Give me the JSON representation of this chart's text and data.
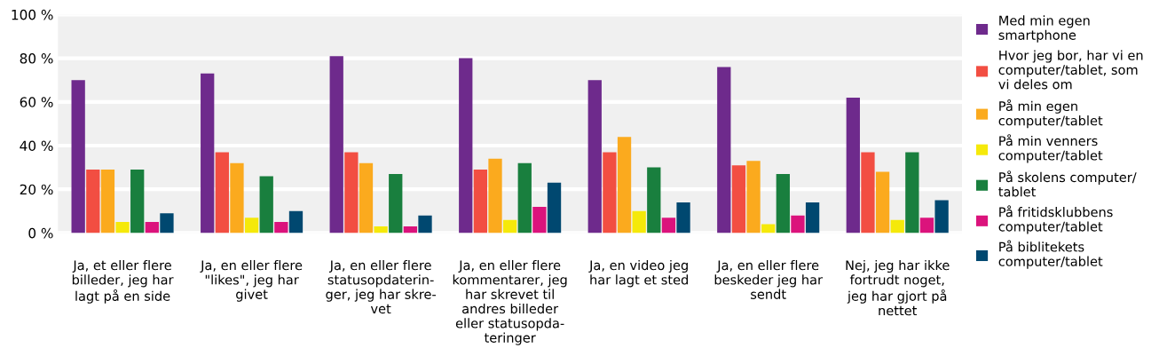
{
  "chart_data": {
    "type": "bar",
    "categories": [
      "Ja, et eller flere\nbilleder, jeg har\nlagt på en side",
      "Ja, en eller flere\n\"likes\", jeg har\ngivet",
      "Ja, en eller flere\nstatusopdaterin-\nger, jeg har skre-\nvet",
      "Ja, en eller flere\nkommentarer, jeg\nhar skrevet til\nandres billeder\neller statusopda-\nteringer",
      "Ja, en video jeg\nhar lagt et sted",
      "Ja, en eller flere\nbeskeder jeg har\nsendt",
      "Nej, jeg har ikke\nfortrudt noget,\njeg har gjort på\nnettet"
    ],
    "series": [
      {
        "name": "Med min egen\nsmartphone",
        "color": "#6e2a8c",
        "values": [
          70,
          73,
          81,
          80,
          70,
          76,
          62
        ]
      },
      {
        "name": "Hvor jeg bor, har vi en\ncomputer/tablet, som\nvi deles om",
        "color": "#f24e42",
        "values": [
          29,
          37,
          37,
          29,
          37,
          31,
          37
        ]
      },
      {
        "name": "På min egen\ncomputer/tablet",
        "color": "#fbaa1e",
        "values": [
          29,
          32,
          32,
          34,
          44,
          33,
          28
        ]
      },
      {
        "name": "På min venners\ncomputer/tablet",
        "color": "#f5e90a",
        "values": [
          5,
          7,
          3,
          6,
          10,
          4,
          6
        ]
      },
      {
        "name": "På skolens computer/\ntablet",
        "color": "#197f3e",
        "values": [
          29,
          26,
          27,
          32,
          30,
          27,
          37
        ]
      },
      {
        "name": "På fritidsklubbens\ncomputer/tablet",
        "color": "#db137c",
        "values": [
          5,
          5,
          3,
          12,
          7,
          8,
          7
        ]
      },
      {
        "name": "På biblitekets\ncomputer/tablet",
        "color": "#004870",
        "values": [
          9,
          10,
          8,
          23,
          14,
          14,
          15
        ]
      }
    ],
    "ylim": [
      0,
      100
    ],
    "yticks": [
      {
        "value": 0,
        "label": "0 %"
      },
      {
        "value": 20,
        "label": "20 %"
      },
      {
        "value": 40,
        "label": "40 %"
      },
      {
        "value": 60,
        "label": "60 %"
      },
      {
        "value": 80,
        "label": "80 %"
      },
      {
        "value": 100,
        "label": "100 %"
      }
    ],
    "grid": "y",
    "legend": "right"
  }
}
